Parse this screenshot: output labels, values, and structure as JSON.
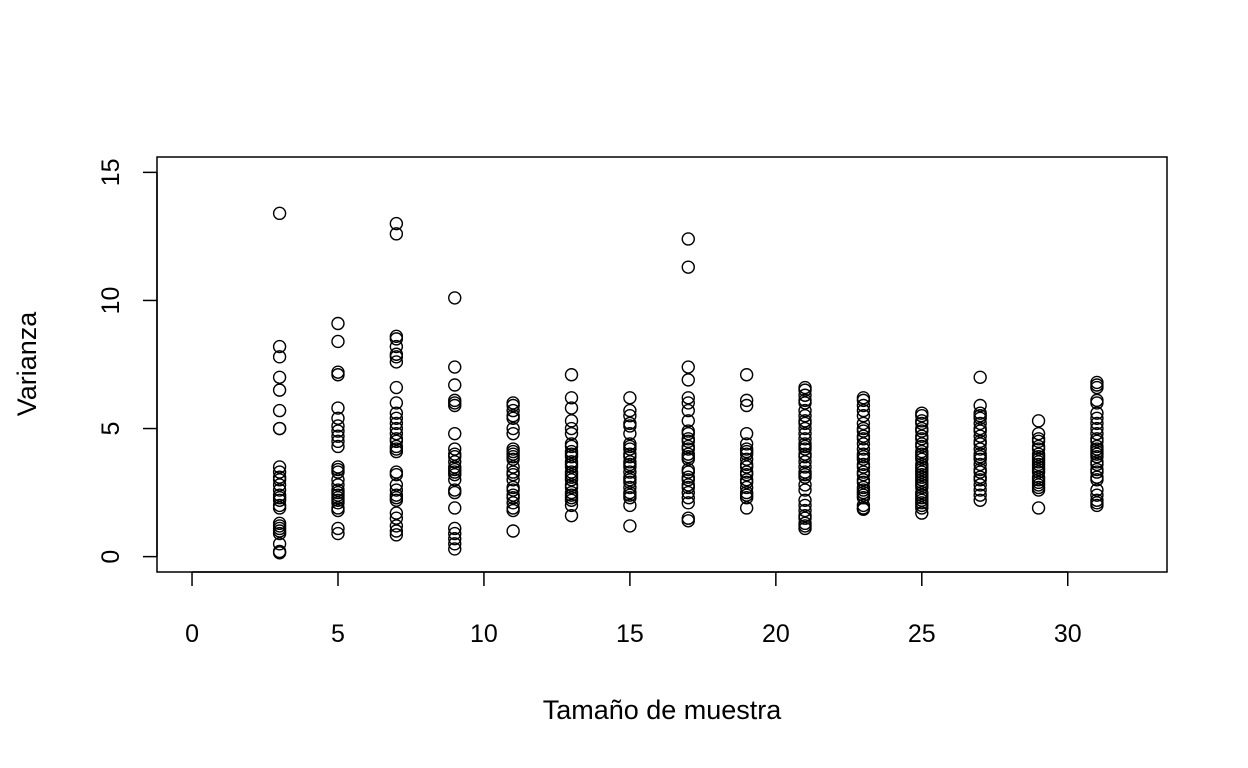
{
  "chart_data": {
    "type": "scatter",
    "title": "",
    "xlabel": "Tamaño de muestra",
    "ylabel": "Varianza",
    "xlim": [
      -1.2,
      33.4
    ],
    "ylim": [
      -0.6,
      15.6
    ],
    "x_ticks": [
      0,
      5,
      10,
      15,
      20,
      25,
      30
    ],
    "y_ticks": [
      0,
      5,
      10,
      15
    ],
    "grid": false,
    "legend": "none",
    "marker": "open-circle",
    "point_color": "#000000",
    "series": [
      {
        "groups": [
          {
            "x": 3,
            "y": [
              13.4,
              8.2,
              7.8,
              7.0,
              6.5,
              5.7,
              5.0,
              5.0,
              3.5,
              3.3,
              3.1,
              3.0,
              2.8,
              2.6,
              2.4,
              2.3,
              2.2,
              2.0,
              1.9,
              1.3,
              1.2,
              1.1,
              1.0,
              0.9,
              0.5,
              0.2,
              0.15
            ]
          },
          {
            "x": 5,
            "y": [
              9.1,
              8.4,
              7.2,
              7.1,
              5.8,
              5.4,
              5.1,
              4.9,
              4.7,
              4.5,
              4.3,
              3.5,
              3.4,
              3.3,
              3.0,
              2.8,
              2.6,
              2.5,
              2.4,
              2.3,
              2.2,
              2.1,
              1.9,
              1.8,
              1.1,
              0.9
            ]
          },
          {
            "x": 7,
            "y": [
              13.0,
              12.6,
              8.6,
              8.5,
              8.2,
              7.9,
              7.8,
              7.6,
              6.6,
              6.0,
              5.6,
              5.4,
              5.2,
              5.0,
              4.8,
              4.6,
              4.5,
              4.3,
              4.2,
              4.1,
              3.3,
              3.2,
              2.8,
              2.6,
              2.4,
              2.3,
              2.2,
              1.7,
              1.5,
              1.2,
              1.0,
              0.85
            ]
          },
          {
            "x": 9,
            "y": [
              10.1,
              7.4,
              6.7,
              6.1,
              6.0,
              5.9,
              4.8,
              4.2,
              4.0,
              3.9,
              3.7,
              3.5,
              3.4,
              3.3,
              3.2,
              3.0,
              2.6,
              2.5,
              1.9,
              1.1,
              0.9,
              0.7,
              0.5,
              0.3
            ]
          },
          {
            "x": 11,
            "y": [
              6.0,
              5.9,
              5.7,
              5.5,
              5.4,
              5.0,
              4.8,
              4.2,
              4.1,
              4.0,
              3.9,
              3.8,
              3.5,
              3.3,
              3.2,
              3.0,
              2.7,
              2.6,
              2.4,
              2.3,
              2.1,
              1.9,
              1.8,
              1.0
            ]
          },
          {
            "x": 13,
            "y": [
              7.1,
              6.2,
              5.8,
              5.3,
              5.0,
              4.8,
              4.4,
              4.3,
              4.1,
              4.0,
              3.9,
              3.7,
              3.6,
              3.5,
              3.3,
              3.2,
              3.1,
              3.0,
              2.8,
              2.7,
              2.5,
              2.4,
              2.3,
              2.2,
              2.0,
              1.6
            ]
          },
          {
            "x": 15,
            "y": [
              6.2,
              5.7,
              5.5,
              5.2,
              5.1,
              4.8,
              4.4,
              4.3,
              4.2,
              4.0,
              3.9,
              3.7,
              3.6,
              3.5,
              3.3,
              3.1,
              3.0,
              2.9,
              2.7,
              2.5,
              2.4,
              2.3,
              2.0,
              1.2
            ]
          },
          {
            "x": 17,
            "y": [
              12.4,
              11.3,
              7.4,
              6.9,
              6.2,
              6.0,
              5.7,
              5.3,
              4.9,
              4.8,
              4.6,
              4.5,
              4.3,
              4.2,
              4.0,
              3.9,
              3.8,
              3.4,
              3.3,
              3.1,
              3.0,
              2.8,
              2.7,
              2.5,
              2.3,
              2.1,
              1.5,
              1.4
            ]
          },
          {
            "x": 19,
            "y": [
              7.1,
              6.1,
              5.9,
              4.8,
              4.4,
              4.2,
              4.1,
              4.0,
              3.8,
              3.6,
              3.5,
              3.3,
              3.2,
              3.0,
              2.9,
              2.7,
              2.5,
              2.4,
              2.3,
              1.9
            ]
          },
          {
            "x": 21,
            "y": [
              6.6,
              6.5,
              6.3,
              6.1,
              6.0,
              5.7,
              5.5,
              5.3,
              5.2,
              5.0,
              4.8,
              4.6,
              4.4,
              4.3,
              4.2,
              4.0,
              3.9,
              3.7,
              3.5,
              3.3,
              3.2,
              3.1,
              2.8,
              2.6,
              2.2,
              2.0,
              1.8,
              1.6,
              1.5,
              1.3,
              1.2,
              1.1
            ]
          },
          {
            "x": 23,
            "y": [
              6.2,
              6.1,
              5.9,
              5.7,
              5.5,
              5.2,
              5.0,
              4.9,
              4.7,
              4.6,
              4.4,
              4.2,
              4.0,
              3.9,
              3.8,
              3.6,
              3.5,
              3.3,
              3.2,
              3.0,
              2.9,
              2.7,
              2.6,
              2.5,
              2.4,
              2.3,
              2.0,
              1.9,
              1.85
            ]
          },
          {
            "x": 25,
            "y": [
              5.6,
              5.5,
              5.3,
              5.2,
              5.0,
              4.9,
              4.7,
              4.6,
              4.4,
              4.3,
              4.1,
              4.0,
              3.9,
              3.8,
              3.6,
              3.5,
              3.4,
              3.3,
              3.2,
              3.1,
              3.0,
              2.9,
              2.8,
              2.7,
              2.5,
              2.4,
              2.3,
              2.2,
              2.1,
              2.0,
              1.9,
              1.7
            ]
          },
          {
            "x": 27,
            "y": [
              7.0,
              5.9,
              5.6,
              5.5,
              5.4,
              5.2,
              5.0,
              4.9,
              4.7,
              4.5,
              4.4,
              4.2,
              4.0,
              3.9,
              3.8,
              3.6,
              3.4,
              3.3,
              3.1,
              3.0,
              2.8,
              2.6,
              2.4,
              2.2
            ]
          },
          {
            "x": 29,
            "y": [
              5.3,
              4.8,
              4.6,
              4.5,
              4.3,
              4.2,
              4.0,
              3.9,
              3.8,
              3.7,
              3.6,
              3.5,
              3.4,
              3.3,
              3.1,
              3.0,
              2.9,
              2.8,
              2.7,
              2.6,
              1.9
            ]
          },
          {
            "x": 31,
            "y": [
              6.8,
              6.7,
              6.6,
              6.1,
              6.0,
              5.6,
              5.4,
              5.2,
              5.0,
              4.8,
              4.6,
              4.5,
              4.3,
              4.2,
              4.1,
              4.0,
              3.9,
              3.7,
              3.6,
              3.4,
              3.3,
              3.1,
              3.0,
              2.6,
              2.4,
              2.2,
              2.1,
              2.0
            ]
          }
        ]
      }
    ]
  }
}
